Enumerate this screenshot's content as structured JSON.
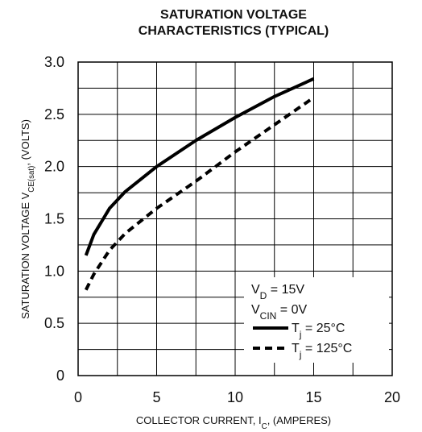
{
  "chart_data": {
    "type": "line",
    "title": [
      "SATURATION VOLTAGE",
      "CHARACTERISTICS (TYPICAL)"
    ],
    "x_label": {
      "main": "COLLECTOR CURRENT, I",
      "sub": "C",
      "rest": ", (AMPERES)"
    },
    "y_label": {
      "main": "SATURATION VOLTAGE V",
      "sub": "CE(sat)",
      "rest": ", (VOLTS)"
    },
    "x": [
      0.5,
      1,
      2,
      3,
      5,
      7.5,
      10,
      12.5,
      15
    ],
    "series": [
      {
        "name": {
          "main": "T",
          "sub": "j",
          "rest": " = 25°C"
        },
        "color": "#000",
        "style": "solid",
        "values": [
          1.15,
          1.35,
          1.6,
          1.76,
          2.0,
          2.25,
          2.47,
          2.67,
          2.84
        ]
      },
      {
        "name": {
          "main": "T",
          "sub": "j",
          "rest": " = 125°C"
        },
        "color": "#000",
        "style": "dashed",
        "values": [
          0.82,
          0.97,
          1.2,
          1.36,
          1.6,
          1.86,
          2.14,
          2.4,
          2.66
        ]
      }
    ],
    "conditions": [
      {
        "main": "V",
        "sub": "D",
        "rest": " = 15V"
      },
      {
        "main": "V",
        "sub": "CIN",
        "rest": " = 0V"
      }
    ],
    "xlim": [
      0,
      20
    ],
    "xticks": [
      0,
      5,
      10,
      15,
      20
    ],
    "xminor": [
      2.5,
      7.5,
      12.5,
      17.5
    ],
    "ylim": [
      0,
      3
    ],
    "yticks": [
      0,
      {
        "value": 0.5,
        "label": "0.5"
      },
      {
        "value": 1,
        "label": "1.0"
      },
      {
        "value": 1.5,
        "label": "1.5"
      },
      {
        "value": 2,
        "label": "2.0"
      },
      {
        "value": 2.5,
        "label": "2.5"
      },
      {
        "value": 3,
        "label": "3.0"
      }
    ],
    "yminor": [
      0.25,
      0.75,
      1.25,
      1.75,
      2.25,
      2.75
    ],
    "grid": true
  }
}
